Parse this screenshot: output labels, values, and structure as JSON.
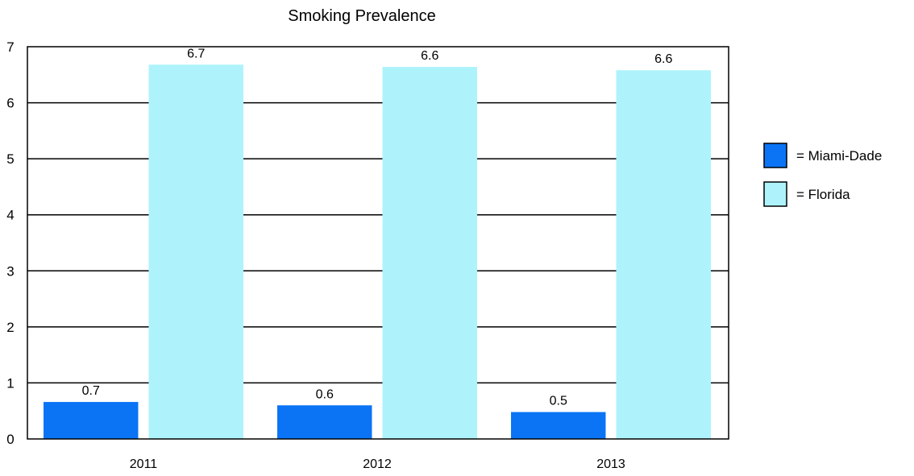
{
  "chart_data": {
    "type": "bar",
    "title": "Smoking Prevalence",
    "xlabel": "",
    "ylabel": "",
    "categories": [
      "2011",
      "2012",
      "2013"
    ],
    "ylim": [
      0,
      7
    ],
    "yticks": [
      0,
      1,
      2,
      3,
      4,
      5,
      6,
      7
    ],
    "grid": true,
    "legend_position": "right",
    "series": [
      {
        "name": "= Miami-Dade",
        "color": "#0a74f5",
        "values": [
          0.66,
          0.6,
          0.48
        ],
        "labels": [
          "0.7",
          "0.6",
          "0.5"
        ]
      },
      {
        "name": "= Florida",
        "color": "#aef3fc",
        "values": [
          6.68,
          6.64,
          6.58
        ],
        "labels": [
          "6.7",
          "6.6",
          "6.6"
        ]
      }
    ]
  }
}
